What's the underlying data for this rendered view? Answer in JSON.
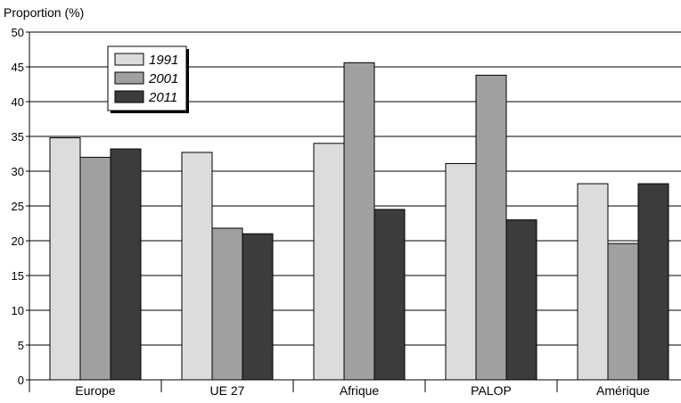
{
  "chart_data": {
    "type": "bar",
    "ylabel": "Proportion (%)",
    "xlabel": "",
    "ylim": [
      0,
      50
    ],
    "yticks": [
      0,
      5,
      10,
      15,
      20,
      25,
      30,
      35,
      40,
      45,
      50
    ],
    "grid": true,
    "legend_position": "top-left",
    "categories": [
      "Europe",
      "UE 27",
      "Afrique",
      "PALOP",
      "Amérique"
    ],
    "series": [
      {
        "name": "1991",
        "color": "#dcdcdc",
        "values": [
          34.8,
          32.7,
          34.0,
          31.1,
          28.2
        ]
      },
      {
        "name": "2001",
        "color": "#a0a0a0",
        "values": [
          32.0,
          21.8,
          45.6,
          43.8,
          19.6
        ]
      },
      {
        "name": "2011",
        "color": "#3c3c3c",
        "values": [
          33.2,
          21.0,
          24.5,
          23.0,
          28.2
        ]
      }
    ]
  }
}
